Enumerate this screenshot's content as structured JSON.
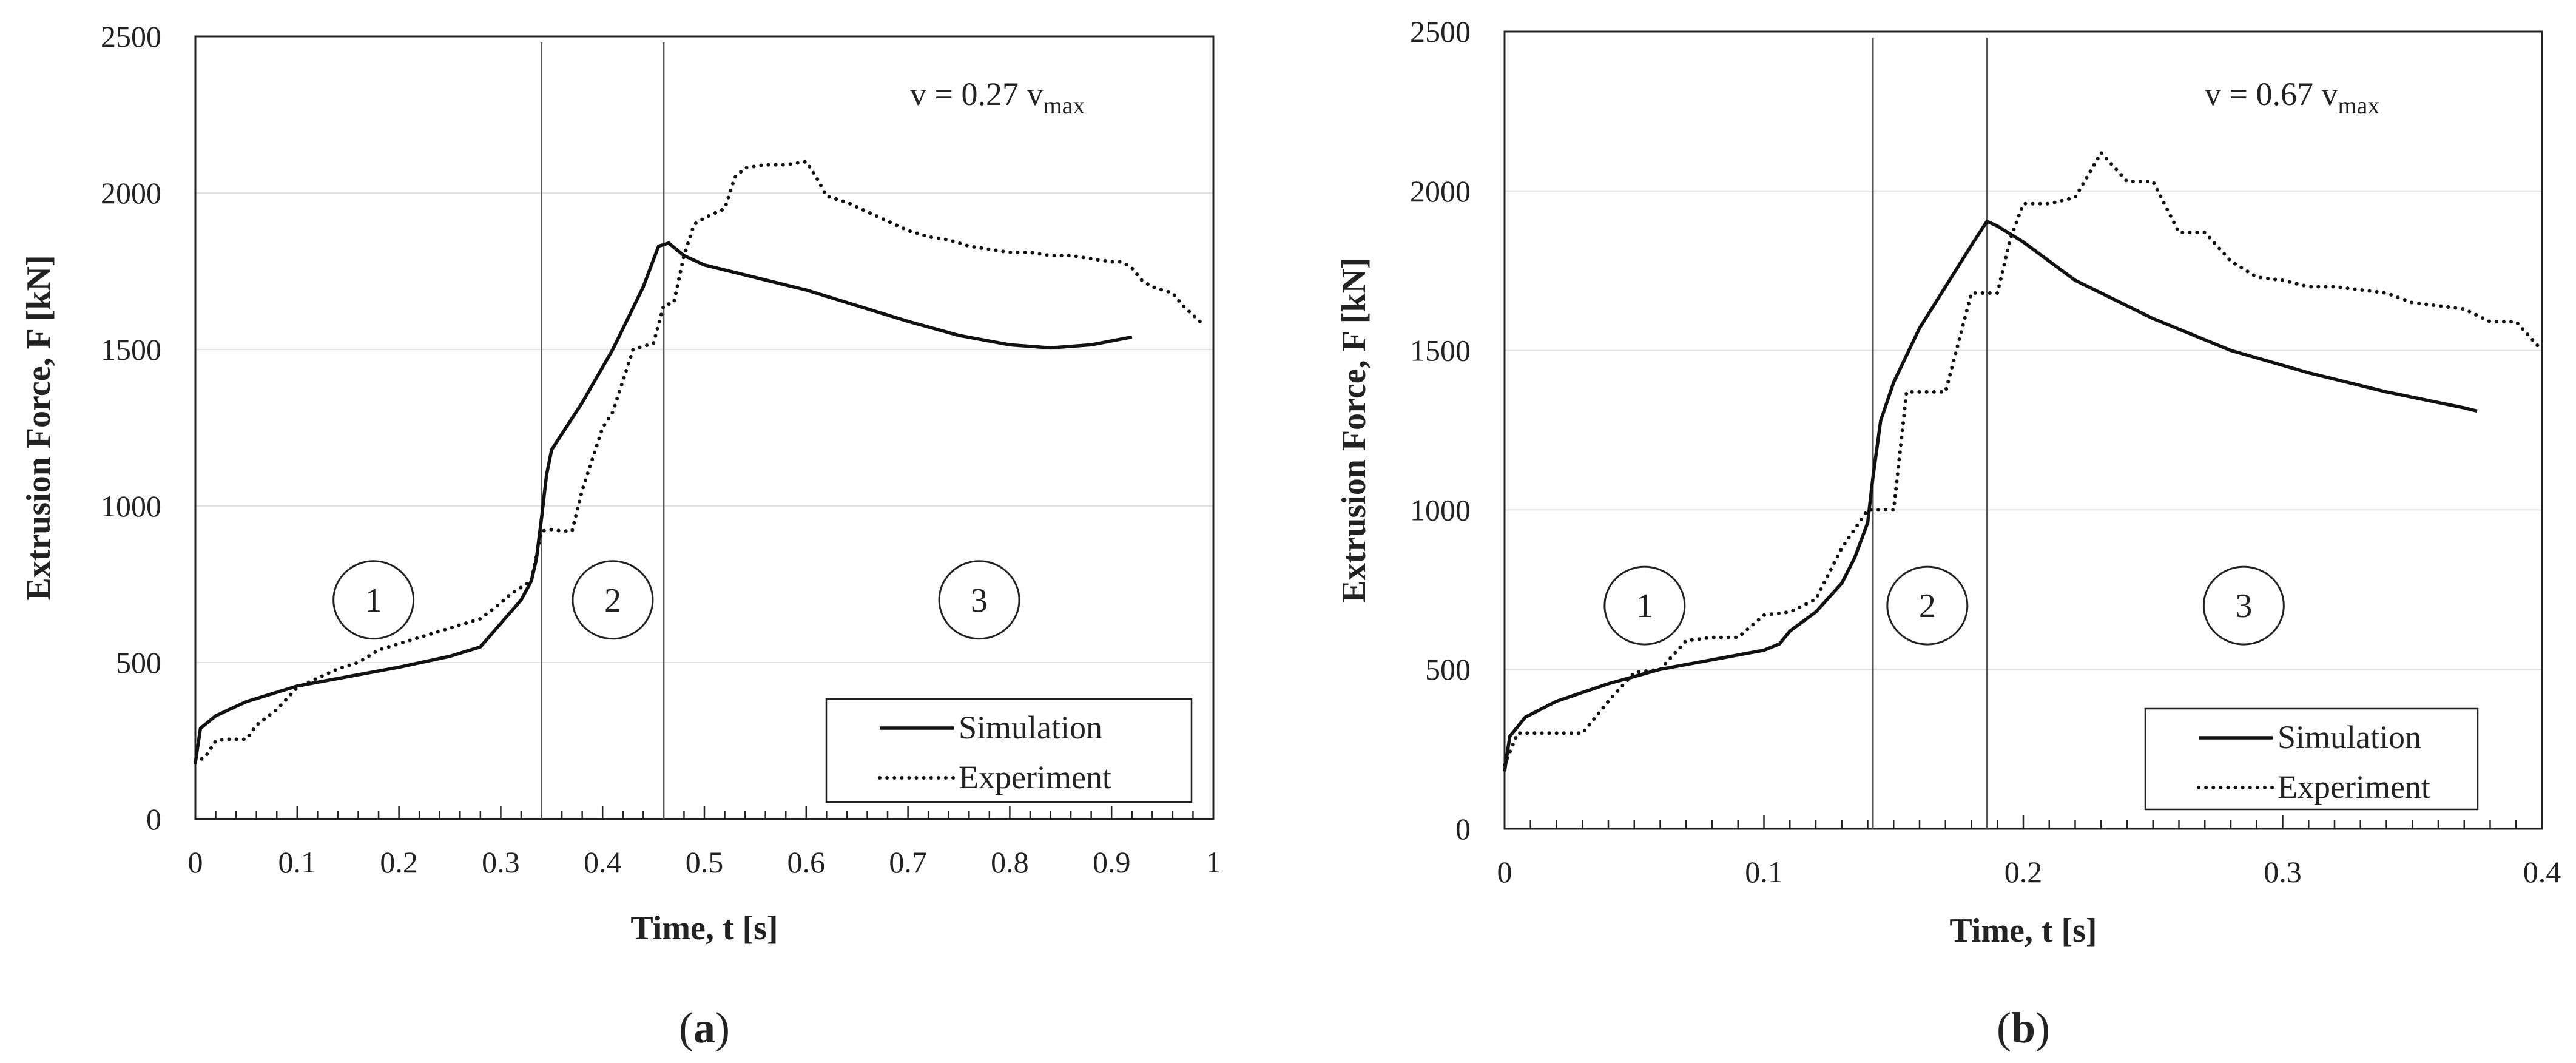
{
  "chart_data": [
    {
      "type": "line",
      "panel_label": "a",
      "xlabel": "Time, t [s]",
      "ylabel": "Extrusion Force, F [kN]",
      "xlim": [
        0,
        1
      ],
      "ylim": [
        0,
        2500
      ],
      "xticks": [
        "0",
        "0.1",
        "0.2",
        "0.3",
        "0.4",
        "0.5",
        "0.6",
        "0.7",
        "0.8",
        "0.9",
        "1"
      ],
      "yticks": [
        "0",
        "500",
        "1000",
        "1500",
        "2000",
        "2500"
      ],
      "xtick_values": [
        0,
        0.1,
        0.2,
        0.3,
        0.4,
        0.5,
        0.6,
        0.7,
        0.8,
        0.9,
        1
      ],
      "ytick_values": [
        0,
        500,
        1000,
        1500,
        2000,
        2500
      ],
      "grid": true,
      "annotation": {
        "prefix": "v = 0.27 v",
        "subscript": "max"
      },
      "vlines": [
        0.34,
        0.46
      ],
      "regions": [
        {
          "label": "1",
          "x": 0.175,
          "y": 700
        },
        {
          "label": "2",
          "x": 0.41,
          "y": 700
        },
        {
          "label": "3",
          "x": 0.77,
          "y": 700
        }
      ],
      "legend": {
        "position": "bottom-right",
        "entries": [
          "Simulation",
          "Experiment"
        ]
      },
      "series": [
        {
          "name": "Simulation",
          "style": "solid",
          "x": [
            0,
            0.005,
            0.02,
            0.05,
            0.1,
            0.15,
            0.2,
            0.25,
            0.28,
            0.3,
            0.32,
            0.33,
            0.335,
            0.34,
            0.345,
            0.35,
            0.38,
            0.41,
            0.44,
            0.455,
            0.465,
            0.48,
            0.5,
            0.55,
            0.6,
            0.65,
            0.7,
            0.75,
            0.8,
            0.84,
            0.88,
            0.92
          ],
          "y": [
            180,
            290,
            330,
            375,
            425,
            455,
            485,
            520,
            550,
            625,
            700,
            760,
            830,
            960,
            1100,
            1180,
            1330,
            1500,
            1700,
            1830,
            1840,
            1800,
            1770,
            1730,
            1690,
            1640,
            1590,
            1545,
            1515,
            1505,
            1515,
            1540
          ]
        },
        {
          "name": "Experiment",
          "style": "dotted",
          "x": [
            0,
            0.01,
            0.02,
            0.03,
            0.05,
            0.06,
            0.08,
            0.1,
            0.12,
            0.14,
            0.16,
            0.18,
            0.2,
            0.22,
            0.24,
            0.26,
            0.28,
            0.3,
            0.31,
            0.33,
            0.34,
            0.35,
            0.36,
            0.37,
            0.38,
            0.39,
            0.4,
            0.41,
            0.42,
            0.43,
            0.44,
            0.45,
            0.46,
            0.47,
            0.48,
            0.49,
            0.5,
            0.52,
            0.53,
            0.54,
            0.56,
            0.58,
            0.6,
            0.61,
            0.62,
            0.64,
            0.66,
            0.68,
            0.7,
            0.72,
            0.74,
            0.76,
            0.78,
            0.8,
            0.82,
            0.84,
            0.86,
            0.88,
            0.9,
            0.91,
            0.92,
            0.93,
            0.94,
            0.95,
            0.96,
            0.97,
            0.98,
            0.99
          ],
          "y": [
            180,
            200,
            250,
            255,
            255,
            300,
            350,
            420,
            450,
            480,
            500,
            540,
            560,
            580,
            600,
            620,
            640,
            690,
            720,
            760,
            920,
            925,
            920,
            920,
            1050,
            1150,
            1250,
            1300,
            1400,
            1500,
            1510,
            1520,
            1640,
            1650,
            1800,
            1900,
            1920,
            1950,
            2050,
            2080,
            2090,
            2090,
            2100,
            2050,
            1990,
            1970,
            1940,
            1910,
            1880,
            1860,
            1850,
            1830,
            1820,
            1810,
            1810,
            1800,
            1800,
            1790,
            1780,
            1780,
            1760,
            1720,
            1700,
            1690,
            1680,
            1640,
            1610,
            1580
          ]
        }
      ]
    },
    {
      "type": "line",
      "panel_label": "b",
      "xlabel": "Time, t [s]",
      "ylabel": "Extrusion Force, F [kN]",
      "xlim": [
        0,
        0.4
      ],
      "ylim": [
        0,
        2500
      ],
      "xticks": [
        "0",
        "0.1",
        "0.2",
        "0.3",
        "0.4"
      ],
      "yticks": [
        "0",
        "500",
        "1000",
        "1500",
        "2000",
        "2500"
      ],
      "xtick_values": [
        0,
        0.1,
        0.2,
        0.3,
        0.4
      ],
      "ytick_values": [
        0,
        500,
        1000,
        1500,
        2000,
        2500
      ],
      "grid": true,
      "annotation": {
        "prefix": "v = 0.67 v",
        "subscript": "max"
      },
      "vlines": [
        0.142,
        0.186
      ],
      "regions": [
        {
          "label": "1",
          "x": 0.054,
          "y": 700
        },
        {
          "label": "2",
          "x": 0.163,
          "y": 700
        },
        {
          "label": "3",
          "x": 0.285,
          "y": 700
        }
      ],
      "legend": {
        "position": "bottom-right",
        "entries": [
          "Simulation",
          "Experiment"
        ]
      },
      "series": [
        {
          "name": "Simulation",
          "style": "solid",
          "x": [
            0,
            0.002,
            0.008,
            0.02,
            0.04,
            0.06,
            0.08,
            0.1,
            0.106,
            0.11,
            0.12,
            0.13,
            0.135,
            0.14,
            0.142,
            0.145,
            0.15,
            0.16,
            0.17,
            0.18,
            0.186,
            0.19,
            0.2,
            0.22,
            0.25,
            0.28,
            0.31,
            0.34,
            0.37,
            0.375
          ],
          "y": [
            180,
            290,
            350,
            400,
            455,
            500,
            530,
            560,
            580,
            620,
            680,
            770,
            850,
            960,
            1100,
            1280,
            1400,
            1570,
            1700,
            1830,
            1905,
            1890,
            1840,
            1720,
            1600,
            1500,
            1430,
            1370,
            1320,
            1310
          ]
        },
        {
          "name": "Experiment",
          "style": "dotted",
          "x": [
            0,
            0.005,
            0.01,
            0.02,
            0.03,
            0.04,
            0.05,
            0.06,
            0.07,
            0.08,
            0.09,
            0.1,
            0.11,
            0.12,
            0.13,
            0.14,
            0.15,
            0.155,
            0.16,
            0.17,
            0.18,
            0.19,
            0.195,
            0.2,
            0.21,
            0.22,
            0.23,
            0.24,
            0.25,
            0.26,
            0.27,
            0.28,
            0.29,
            0.3,
            0.31,
            0.32,
            0.33,
            0.34,
            0.35,
            0.36,
            0.37,
            0.38,
            0.39,
            0.4
          ],
          "y": [
            200,
            300,
            300,
            300,
            300,
            400,
            490,
            500,
            590,
            600,
            600,
            670,
            680,
            720,
            880,
            1000,
            1000,
            1370,
            1370,
            1370,
            1680,
            1680,
            1850,
            1960,
            1960,
            1980,
            2120,
            2030,
            2030,
            1870,
            1870,
            1780,
            1730,
            1720,
            1700,
            1700,
            1690,
            1680,
            1650,
            1640,
            1630,
            1590,
            1590,
            1500
          ]
        }
      ]
    }
  ]
}
